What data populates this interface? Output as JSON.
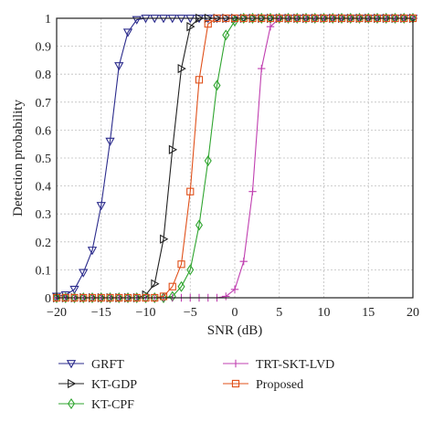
{
  "chart_data": {
    "type": "line",
    "xlabel": "SNR (dB)",
    "ylabel": "Detection probability",
    "xlim": [
      -20,
      20
    ],
    "ylim": [
      0,
      1
    ],
    "xticks": [
      -20,
      -15,
      -10,
      -5,
      0,
      5,
      10,
      15,
      20
    ],
    "yticks": [
      0,
      0.1,
      0.2,
      0.3,
      0.4,
      0.5,
      0.6,
      0.7,
      0.8,
      0.9,
      1
    ],
    "xtick_labels": [
      "−20",
      "−15",
      "−10",
      "−5",
      "0",
      "5",
      "10",
      "15",
      "20"
    ],
    "ytick_labels": [
      "0",
      "0.1",
      "0.2",
      "0.3",
      "0.4",
      "0.5",
      "0.6",
      "0.7",
      "0.8",
      "0.9",
      "1"
    ],
    "grid": true,
    "legend_placement": "bottom",
    "x": [
      -20,
      -19,
      -18,
      -17,
      -16,
      -15,
      -14,
      -13,
      -12,
      -11,
      -10,
      -9,
      -8,
      -7,
      -6,
      -5,
      -4,
      -3,
      -2,
      -1,
      0,
      1,
      2,
      3,
      4,
      5,
      6,
      7,
      8,
      9,
      10,
      11,
      12,
      13,
      14,
      15,
      16,
      17,
      18,
      19,
      20
    ],
    "series": [
      {
        "name": "GRFT",
        "color": "#2b2b8c",
        "marker": "triangle-down",
        "values": [
          0.005,
          0.01,
          0.03,
          0.09,
          0.17,
          0.33,
          0.56,
          0.83,
          0.95,
          0.995,
          1,
          1,
          1,
          1,
          1,
          1,
          1,
          1,
          1,
          1,
          1,
          1,
          1,
          1,
          1,
          1,
          1,
          1,
          1,
          1,
          1,
          1,
          1,
          1,
          1,
          1,
          1,
          1,
          1,
          1,
          1
        ]
      },
      {
        "name": "KT-GDP",
        "color": "#222222",
        "marker": "triangle-right",
        "values": [
          0,
          0,
          0,
          0,
          0,
          0,
          0,
          0,
          0,
          0,
          0.01,
          0.05,
          0.21,
          0.53,
          0.82,
          0.97,
          1,
          1,
          1,
          1,
          1,
          1,
          1,
          1,
          1,
          1,
          1,
          1,
          1,
          1,
          1,
          1,
          1,
          1,
          1,
          1,
          1,
          1,
          1,
          1,
          1
        ]
      },
      {
        "name": "KT-CPF",
        "color": "#2fa52f",
        "marker": "diamond",
        "values": [
          0,
          0,
          0,
          0,
          0,
          0,
          0,
          0,
          0,
          0,
          0,
          0,
          0,
          0.005,
          0.04,
          0.1,
          0.26,
          0.49,
          0.76,
          0.94,
          0.99,
          1,
          1,
          1,
          1,
          1,
          1,
          1,
          1,
          1,
          1,
          1,
          1,
          1,
          1,
          1,
          1,
          1,
          1,
          1,
          1
        ]
      },
      {
        "name": "TRT-SKT-LVD",
        "color": "#c03fb0",
        "marker": "plus",
        "values": [
          0,
          0,
          0,
          0,
          0,
          0,
          0,
          0,
          0,
          0,
          0,
          0,
          0,
          0,
          0,
          0,
          0,
          0,
          0,
          0.005,
          0.03,
          0.13,
          0.38,
          0.82,
          0.97,
          1,
          1,
          1,
          1,
          1,
          1,
          1,
          1,
          1,
          1,
          1,
          1,
          1,
          1,
          1,
          1
        ]
      },
      {
        "name": "Proposed",
        "color": "#e0501a",
        "marker": "square",
        "values": [
          0,
          0,
          0,
          0,
          0,
          0,
          0,
          0,
          0,
          0,
          0,
          0,
          0.005,
          0.04,
          0.12,
          0.38,
          0.78,
          0.98,
          1,
          1,
          1,
          1,
          1,
          1,
          1,
          1,
          1,
          1,
          1,
          1,
          1,
          1,
          1,
          1,
          1,
          1,
          1,
          1,
          1,
          1,
          1
        ]
      }
    ]
  }
}
